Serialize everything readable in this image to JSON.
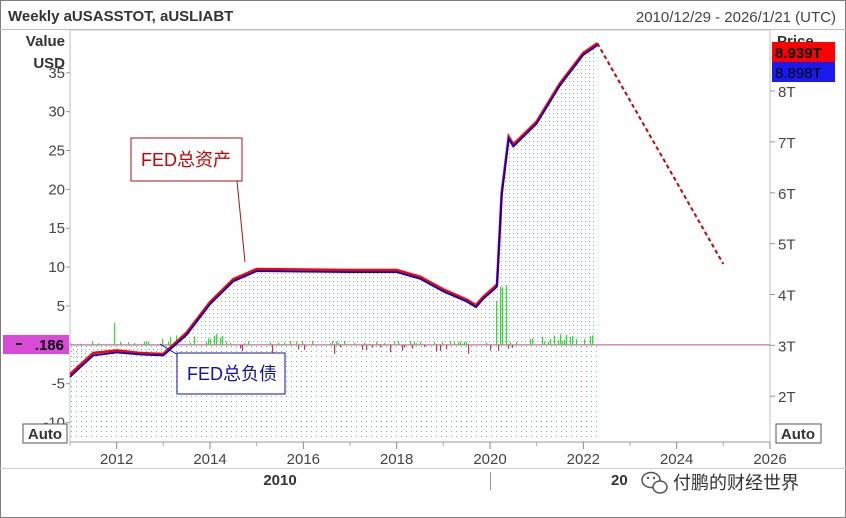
{
  "header": {
    "title": "Weekly aUSASSTOT, aUSLIABT",
    "range": "2010/12/29 - 2026/1/21 (UTC)"
  },
  "left_axis": {
    "label_line1": "Value",
    "label_line2": "USD",
    "ticks": [
      "35",
      "30",
      "25",
      "20",
      "15",
      "10",
      "5",
      "-5",
      "-10"
    ],
    "current_label": ".186",
    "auto_label": "Auto"
  },
  "right_axis": {
    "label": "Price",
    "ticks": [
      "8T",
      "7T",
      "6T",
      "5T",
      "4T",
      "3T",
      "2T"
    ],
    "assets_label": "8.939T",
    "liab_label": "8.898T",
    "auto_label": "Auto"
  },
  "x_axis": {
    "ticks": [
      "2012",
      "2014",
      "2016",
      "2018",
      "2020",
      "2022",
      "2024",
      "2026"
    ],
    "period1": "2010",
    "period2": "20",
    "watermark": "付鹏的财经世界"
  },
  "annotations": {
    "assets": "FED总资产",
    "liabilities": "FED总负债"
  },
  "colors": {
    "assets": "#ff0000",
    "liabilities": "#0000cc",
    "forecast": "#cc0000",
    "volume": "#33dd33",
    "badge": "#d94ad9",
    "fill_dots": "#7fb2b2"
  },
  "chart_data": {
    "type": "line",
    "title": "Weekly aUSASSTOT, aUSLIABT",
    "x_range": [
      2011.0,
      2026.0
    ],
    "y_right_range": [
      1.1,
      9.2
    ],
    "y_left_range": [
      -12.5,
      40.5
    ],
    "series": [
      {
        "name": "aUSASSTOT",
        "unit": "USD trillions",
        "x": [
          2011.0,
          2011.2,
          2011.5,
          2012.0,
          2012.5,
          2013.0,
          2013.5,
          2014.0,
          2014.5,
          2015.0,
          2016.0,
          2017.0,
          2018.0,
          2018.5,
          2019.0,
          2019.5,
          2019.7,
          2019.85,
          2020.1,
          2020.15,
          2020.25,
          2020.4,
          2020.5,
          2021.0,
          2021.5,
          2022.0,
          2022.3
        ],
        "values": [
          2.43,
          2.6,
          2.85,
          2.9,
          2.85,
          2.83,
          3.25,
          3.85,
          4.3,
          4.5,
          4.49,
          4.48,
          4.48,
          4.35,
          4.1,
          3.9,
          3.79,
          3.95,
          4.15,
          4.2,
          6.0,
          7.1,
          6.95,
          7.4,
          8.15,
          8.75,
          8.939
        ]
      },
      {
        "name": "aUSLIABT",
        "unit": "USD trillions",
        "x": [
          2011.0,
          2011.2,
          2011.5,
          2012.0,
          2012.5,
          2013.0,
          2013.5,
          2014.0,
          2014.5,
          2015.0,
          2016.0,
          2017.0,
          2018.0,
          2018.5,
          2019.0,
          2019.5,
          2019.7,
          2019.85,
          2020.1,
          2020.15,
          2020.25,
          2020.4,
          2020.5,
          2021.0,
          2021.5,
          2022.0,
          2022.3
        ],
        "values": [
          2.38,
          2.55,
          2.8,
          2.86,
          2.82,
          2.8,
          3.21,
          3.81,
          4.26,
          4.46,
          4.45,
          4.44,
          4.44,
          4.31,
          4.06,
          3.86,
          3.75,
          3.91,
          4.11,
          4.16,
          5.95,
          7.06,
          6.91,
          7.36,
          8.11,
          8.71,
          8.898
        ]
      },
      {
        "name": "forecast",
        "style": "dashed",
        "unit": "USD trillions",
        "x": [
          2022.3,
          2025.0
        ],
        "values": [
          8.939,
          4.6
        ]
      }
    ],
    "difference": {
      "name": "difference",
      "unit": "USD billions",
      "current_value": -0.186
    }
  }
}
